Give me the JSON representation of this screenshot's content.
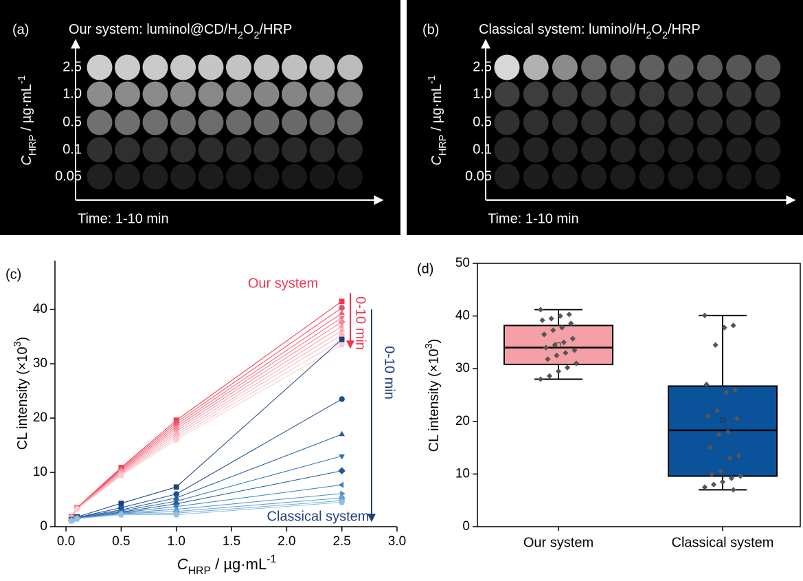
{
  "panels": {
    "a": {
      "label": "(a)",
      "title": [
        {
          "text": "Our system: luminol@CD/H",
          "style": "normal"
        },
        {
          "text": "2",
          "style": "sub"
        },
        {
          "text": "O",
          "style": "normal"
        },
        {
          "text": "2",
          "style": "sub"
        },
        {
          "text": "/HRP",
          "style": "normal"
        }
      ],
      "ylabel": [
        {
          "text": "C",
          "style": "italic"
        },
        {
          "text": "HRP",
          "style": "sub"
        },
        {
          "text": " / µg·mL",
          "style": "normal"
        },
        {
          "text": "-1",
          "style": "sup"
        }
      ],
      "rows": [
        "2.5",
        "1.0",
        "0.5",
        "0.1",
        "0.05"
      ],
      "xlabel": "Time: 1-10 min"
    },
    "b": {
      "label": "(b)",
      "title": [
        {
          "text": "Classical system: luminol/H",
          "style": "normal"
        },
        {
          "text": "2",
          "style": "sub"
        },
        {
          "text": "O",
          "style": "normal"
        },
        {
          "text": "2",
          "style": "sub"
        },
        {
          "text": "/HRP",
          "style": "normal"
        }
      ],
      "ylabel": [
        {
          "text": "C",
          "style": "italic"
        },
        {
          "text": "HRP",
          "style": "sub"
        },
        {
          "text": " / µg·mL",
          "style": "normal"
        },
        {
          "text": "-1",
          "style": "sup"
        }
      ],
      "rows": [
        "2.5",
        "1.0",
        "0.5",
        "0.1",
        "0.05"
      ],
      "xlabel": "Time: 1-10 min"
    }
  },
  "chart_data": [
    {
      "type": "line",
      "panel_label": "(c)",
      "ylabel": [
        {
          "text": "CL intensity (×10",
          "style": "normal"
        },
        {
          "text": "3",
          "style": "sup"
        },
        {
          "text": ")",
          "style": "normal"
        }
      ],
      "xlabel": [
        {
          "text": "C",
          "style": "italic"
        },
        {
          "text": "HRP",
          "style": "sub"
        },
        {
          "text": " / µg·mL",
          "style": "normal"
        },
        {
          "text": "-1",
          "style": "sup"
        }
      ],
      "x": [
        0.05,
        0.1,
        0.5,
        1.0,
        2.5
      ],
      "xlim": [
        -0.1,
        3.0
      ],
      "xticks": [
        {
          "value": 0,
          "label": "0.0"
        },
        0.5,
        {
          "value": 1,
          "label": "1.0"
        },
        1.5,
        {
          "value": 2,
          "label": "2.0"
        },
        2.5,
        {
          "value": 3,
          "label": "3.0"
        }
      ],
      "ylim": [
        0,
        49
      ],
      "yticks": [
        0,
        10,
        20,
        30,
        40
      ],
      "annotations": [
        {
          "text": "Our system",
          "color": "#f2344f"
        },
        {
          "text": "0-10 min",
          "color": "#f2344f"
        },
        {
          "text": "0-10 min",
          "color": "#1c3f7e"
        },
        {
          "text": "Classical system",
          "color": "#1c3f7e"
        }
      ],
      "series": [
        {
          "color": "#f2344f",
          "marker": "square",
          "values": [
            1.8,
            3.5,
            10.9,
            19.6,
            41.5
          ]
        },
        {
          "color": "#f34a60",
          "marker": "circle",
          "values": [
            1.8,
            3.5,
            10.7,
            19.2,
            40.3
          ]
        },
        {
          "color": "#f45e72",
          "marker": "triangle-up",
          "values": [
            1.7,
            3.4,
            10.5,
            18.8,
            39.3
          ]
        },
        {
          "color": "#f57284",
          "marker": "triangle-down",
          "values": [
            1.7,
            3.4,
            10.3,
            18.4,
            38.5
          ]
        },
        {
          "color": "#f68696",
          "marker": "diamond",
          "values": [
            1.7,
            3.4,
            10.2,
            18.0,
            37.7
          ]
        },
        {
          "color": "#f79aa8",
          "marker": "triangle-left",
          "values": [
            1.6,
            3.3,
            10.0,
            17.6,
            36.9
          ]
        },
        {
          "color": "#f8a8b4",
          "marker": "triangle-right",
          "values": [
            1.6,
            3.3,
            9.9,
            17.2,
            36.1
          ]
        },
        {
          "color": "#f9b4be",
          "marker": "hexagon",
          "values": [
            1.6,
            3.3,
            9.7,
            16.8,
            35.3
          ]
        },
        {
          "color": "#fac0c8",
          "marker": "star",
          "values": [
            1.5,
            3.2,
            9.6,
            16.4,
            34.4
          ]
        },
        {
          "color": "#fbccd2",
          "marker": "pentagon",
          "values": [
            1.5,
            3.2,
            9.4,
            16.0,
            33.5
          ]
        },
        {
          "color": "#1c3f7e",
          "marker": "square",
          "values": [
            1.3,
            1.8,
            4.3,
            7.3,
            34.5
          ]
        },
        {
          "color": "#1f4d8e",
          "marker": "circle",
          "values": [
            1.3,
            1.7,
            3.5,
            6.0,
            23.5
          ]
        },
        {
          "color": "#225e9e",
          "marker": "triangle-up",
          "values": [
            1.2,
            1.7,
            3.1,
            5.3,
            17.0
          ]
        },
        {
          "color": "#2a6fae",
          "marker": "triangle-down",
          "values": [
            1.2,
            1.6,
            2.9,
            4.7,
            13.0
          ]
        },
        {
          "color": "#1f5a9a",
          "marker": "diamond",
          "values": [
            1.2,
            1.6,
            2.7,
            4.2,
            10.3
          ]
        },
        {
          "color": "#3a80bb",
          "marker": "triangle-left",
          "values": [
            1.2,
            1.6,
            2.6,
            3.7,
            7.7
          ]
        },
        {
          "color": "#4c91c6",
          "marker": "triangle-right",
          "values": [
            1.1,
            1.5,
            2.5,
            3.2,
            6.1
          ]
        },
        {
          "color": "#62a1d0",
          "marker": "hexagon",
          "values": [
            1.1,
            1.5,
            2.4,
            2.8,
            5.3
          ]
        },
        {
          "color": "#78b0d9",
          "marker": "star",
          "values": [
            1.1,
            1.5,
            2.3,
            2.5,
            4.8
          ]
        },
        {
          "color": "#90c0e2",
          "marker": "pentagon",
          "values": [
            1.1,
            1.5,
            2.2,
            2.2,
            4.5
          ]
        }
      ]
    },
    {
      "type": "box",
      "panel_label": "(d)",
      "ylabel": [
        {
          "text": "CL intensity (×10",
          "style": "normal"
        },
        {
          "text": "3",
          "style": "sup"
        },
        {
          "text": ")",
          "style": "normal"
        }
      ],
      "categories": [
        "Our system",
        "Classical system"
      ],
      "ylim": [
        0,
        50
      ],
      "yticks": [
        0,
        10,
        20,
        30,
        40,
        50
      ],
      "point_color": "#555555",
      "boxes": [
        {
          "color": "#f4a0a6",
          "min": 28.0,
          "q1": 30.8,
          "median": 34.0,
          "q3": 38.2,
          "max": 41.2,
          "mean": 34.5,
          "points": [
            41.2,
            40.3,
            40.0,
            39.5,
            39.2,
            38.6,
            37.8,
            37.3,
            36.5,
            35.7,
            35.0,
            34.5,
            34.0,
            33.5,
            33.0,
            32.5,
            31.8,
            31.0,
            30.2,
            29.5,
            28.6,
            28.0
          ]
        },
        {
          "color": "#0a5299",
          "min": 7.0,
          "q1": 9.6,
          "median": 18.3,
          "q3": 26.7,
          "max": 40.1,
          "mean": 20.2,
          "points": [
            40.1,
            38.2,
            37.8,
            34.5,
            27.0,
            26.0,
            25.5,
            22.0,
            21.0,
            20.5,
            18.0,
            17.5,
            15.0,
            13.5,
            13.0,
            10.5,
            10.0,
            9.6,
            9.2,
            8.5,
            8.0,
            7.5,
            7.0
          ]
        }
      ]
    }
  ]
}
